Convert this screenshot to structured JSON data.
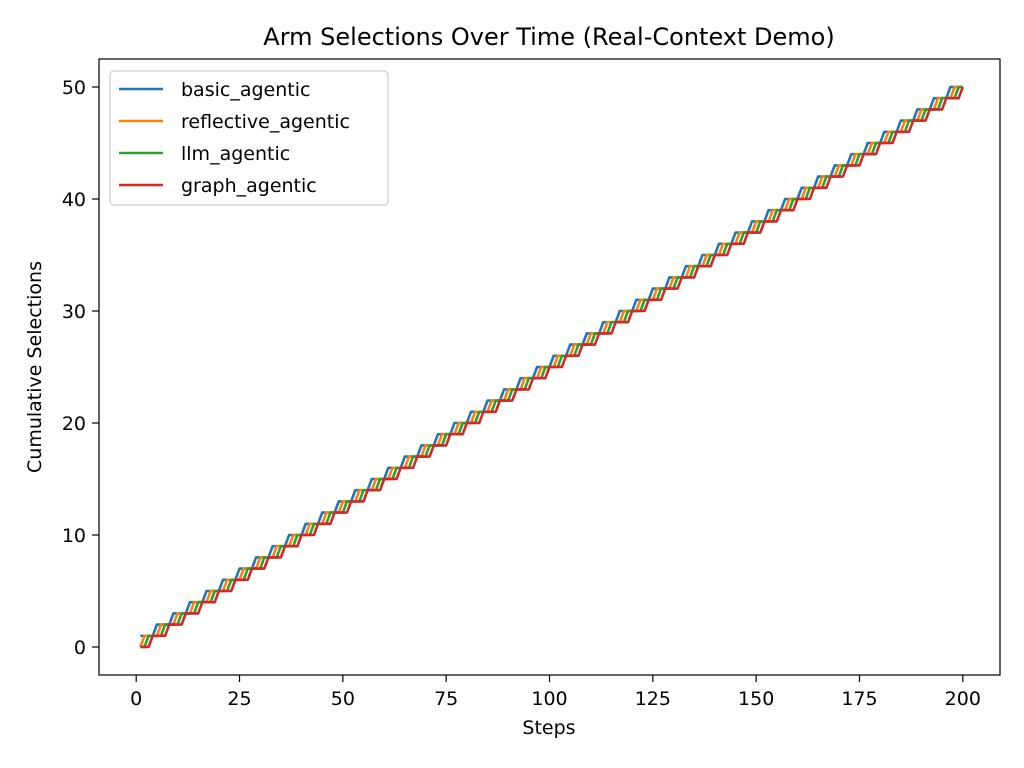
{
  "chart_data": {
    "type": "line",
    "title": "Arm Selections Over Time (Real-Context Demo)",
    "xlabel": "Steps",
    "ylabel": "Cumulative Selections",
    "xlim": [
      -9,
      209
    ],
    "ylim": [
      -2.5,
      52.5
    ],
    "xticks": [
      0,
      25,
      50,
      75,
      100,
      125,
      150,
      175,
      200
    ],
    "yticks": [
      0,
      10,
      20,
      30,
      40,
      50
    ],
    "grid": false,
    "legend_position": "top-left",
    "steps": [
      1,
      200
    ],
    "selection_pattern": "round-robin cycle of 4 arms",
    "series": [
      {
        "name": "basic_agentic",
        "color": "#1f77b4",
        "first_selected_step": 1,
        "final_value": 50
      },
      {
        "name": "reflective_agentic",
        "color": "#ff7f0e",
        "first_selected_step": 2,
        "final_value": 50
      },
      {
        "name": "llm_agentic",
        "color": "#2ca02c",
        "first_selected_step": 3,
        "final_value": 50
      },
      {
        "name": "graph_agentic",
        "color": "#d62728",
        "first_selected_step": 4,
        "final_value": 50
      }
    ]
  }
}
